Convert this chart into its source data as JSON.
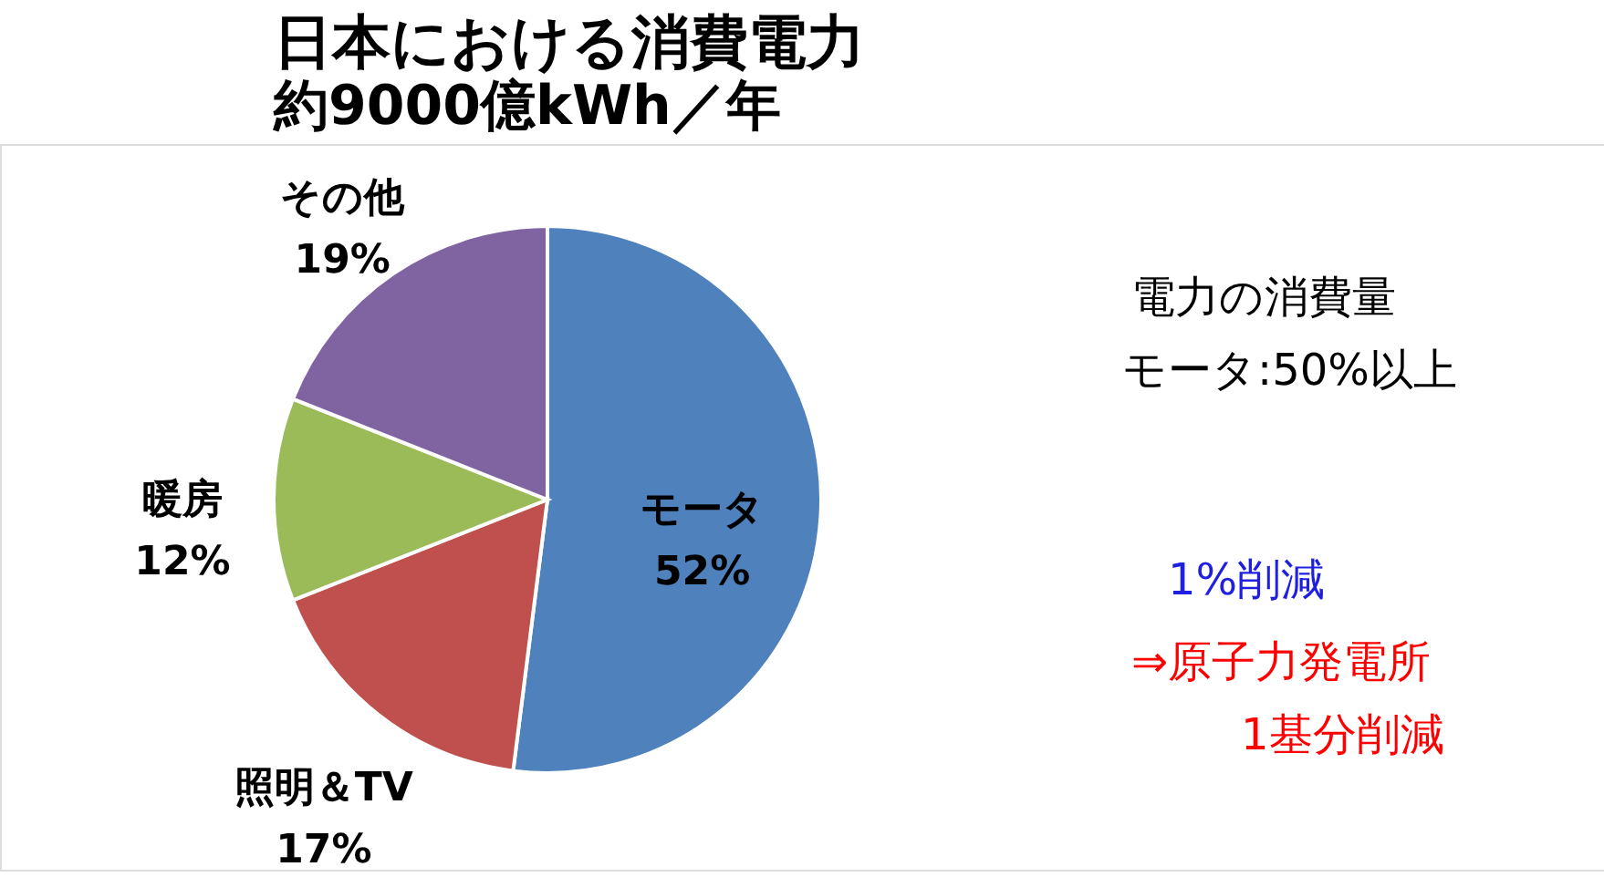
{
  "chart_data": {
    "type": "pie",
    "title": "日本における消費電力",
    "subtitle": "約9000億kWh／年",
    "categories": [
      "モータ",
      "照明＆TV",
      "暖房",
      "その他"
    ],
    "values": [
      52,
      17,
      12,
      19
    ],
    "colors": [
      "#4f81bd",
      "#c0504d",
      "#9bbb59",
      "#8064a2"
    ],
    "value_labels": [
      "52%",
      "17%",
      "12%",
      "19%"
    ],
    "legend": false,
    "annotations": [
      "電力の消費量",
      "モータ:50%以上",
      "1%削減",
      "⇒原子力発電所",
      "1基分削減"
    ]
  }
}
